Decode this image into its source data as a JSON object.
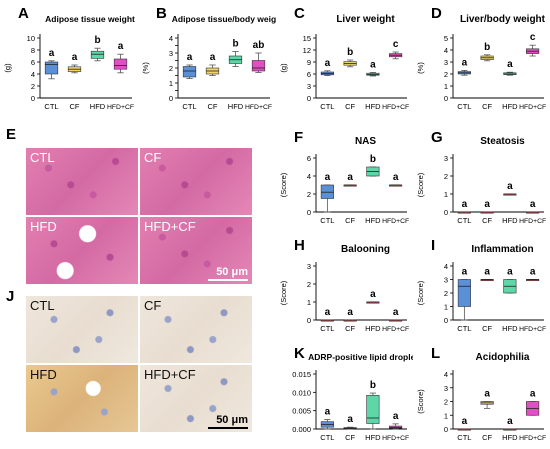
{
  "histology": {
    "he_label": "E",
    "ihc_label": "J",
    "he_panels": [
      "CTL",
      "CF",
      "HFD",
      "HFD+CF"
    ],
    "ihc_panels": [
      "CTL",
      "CF",
      "HFD",
      "HFD+CF"
    ],
    "scale_text": "50 μm"
  },
  "chart_data": [
    {
      "id": "A",
      "type": "box",
      "title": "Adipose tissue weight",
      "ylabel": "(g)",
      "ylim": [
        0,
        10
      ],
      "yticks": [
        0,
        2,
        4,
        6,
        8,
        10
      ],
      "categories": [
        "CTL",
        "CF",
        "HFD",
        "HFD+CF"
      ],
      "colors": [
        "#5b8fd6",
        "#f2d26a",
        "#5fd6a8",
        "#e24fc5"
      ],
      "boxes": [
        {
          "min": 3.2,
          "q1": 4.0,
          "median": 5.6,
          "q3": 6.0,
          "max": 6.2
        },
        {
          "min": 4.2,
          "q1": 4.4,
          "median": 4.8,
          "q3": 5.2,
          "max": 5.5
        },
        {
          "min": 6.2,
          "q1": 6.6,
          "median": 7.3,
          "q3": 7.8,
          "max": 8.3
        },
        {
          "min": 4.2,
          "q1": 4.8,
          "median": 5.4,
          "q3": 6.5,
          "max": 7.3
        }
      ],
      "letters": [
        "a",
        "a",
        "b",
        "a"
      ]
    },
    {
      "id": "B",
      "type": "box",
      "title": "Adipose tissue/body weight",
      "ylabel": "(%)",
      "ylim": [
        0,
        4
      ],
      "yticks": [
        0,
        0.5,
        1,
        1.5,
        2,
        2.5,
        3,
        3.5,
        4
      ],
      "categories": [
        "CTL",
        "CF",
        "HFD",
        "HFD+CF"
      ],
      "colors": [
        "#5b8fd6",
        "#f2d26a",
        "#5fd6a8",
        "#e24fc5"
      ],
      "boxes": [
        {
          "min": 1.3,
          "q1": 1.4,
          "median": 1.8,
          "q3": 2.1,
          "max": 2.2
        },
        {
          "min": 1.5,
          "q1": 1.6,
          "median": 1.8,
          "q3": 2.0,
          "max": 2.2
        },
        {
          "min": 2.1,
          "q1": 2.3,
          "median": 2.55,
          "q3": 2.8,
          "max": 3.1
        },
        {
          "min": 1.7,
          "q1": 1.8,
          "median": 2.0,
          "q3": 2.5,
          "max": 3.0
        }
      ],
      "letters": [
        "a",
        "a",
        "b",
        "ab"
      ]
    },
    {
      "id": "C",
      "type": "box",
      "title": "Liver weight",
      "ylabel": "(g)",
      "ylim": [
        0,
        15
      ],
      "yticks": [
        0,
        3,
        6,
        9,
        12,
        15
      ],
      "categories": [
        "CTL",
        "CF",
        "HFD",
        "HFD+CF"
      ],
      "colors": [
        "#5b8fd6",
        "#f2d26a",
        "#5fd6a8",
        "#e24fc5"
      ],
      "boxes": [
        {
          "min": 5.6,
          "q1": 5.8,
          "median": 6.1,
          "q3": 6.5,
          "max": 6.8
        },
        {
          "min": 7.8,
          "q1": 8.2,
          "median": 8.6,
          "q3": 9.1,
          "max": 9.5
        },
        {
          "min": 5.5,
          "q1": 5.7,
          "median": 5.9,
          "q3": 6.2,
          "max": 6.4
        },
        {
          "min": 9.8,
          "q1": 10.3,
          "median": 10.7,
          "q3": 11.1,
          "max": 11.5
        }
      ],
      "letters": [
        "a",
        "b",
        "a",
        "c"
      ]
    },
    {
      "id": "D",
      "type": "box",
      "title": "Liver/body weight",
      "ylabel": "(%)",
      "ylim": [
        0,
        5
      ],
      "yticks": [
        0,
        1,
        2,
        3,
        4,
        5
      ],
      "categories": [
        "CTL",
        "CF",
        "HFD",
        "HFD+CF"
      ],
      "colors": [
        "#5b8fd6",
        "#f2d26a",
        "#5fd6a8",
        "#e24fc5"
      ],
      "boxes": [
        {
          "min": 1.9,
          "q1": 2.0,
          "median": 2.1,
          "q3": 2.2,
          "max": 2.3
        },
        {
          "min": 3.1,
          "q1": 3.2,
          "median": 3.35,
          "q3": 3.5,
          "max": 3.6
        },
        {
          "min": 1.9,
          "q1": 1.95,
          "median": 2.0,
          "q3": 2.1,
          "max": 2.15
        },
        {
          "min": 3.5,
          "q1": 3.7,
          "median": 3.9,
          "q3": 4.1,
          "max": 4.4
        }
      ],
      "letters": [
        "a",
        "b",
        "a",
        "c"
      ]
    },
    {
      "id": "F",
      "type": "box",
      "title": "NAS",
      "ylabel": "(Score)",
      "ylim": [
        0,
        6
      ],
      "yticks": [
        0,
        2,
        4,
        6
      ],
      "categories": [
        "CTL",
        "CF",
        "HFD",
        "HFD+CF"
      ],
      "colors": [
        "#5b8fd6",
        "#e24f4f",
        "#5fd6a8",
        "#e24f4f"
      ],
      "boxes": [
        {
          "min": 0,
          "q1": 1.5,
          "median": 2.2,
          "q3": 3.0,
          "max": 3.0
        },
        {
          "min": 3.0,
          "q1": 3.0,
          "median": 3.0,
          "q3": 3.0,
          "max": 3.0
        },
        {
          "min": 4.0,
          "q1": 4.0,
          "median": 4.5,
          "q3": 5.0,
          "max": 5.0
        },
        {
          "min": 3.0,
          "q1": 3.0,
          "median": 3.0,
          "q3": 3.0,
          "max": 3.0
        }
      ],
      "letters": [
        "a",
        "a",
        "b",
        "a"
      ]
    },
    {
      "id": "G",
      "type": "box",
      "title": "Steatosis",
      "ylabel": "(Score)",
      "ylim": [
        0,
        3
      ],
      "yticks": [
        0,
        1,
        2,
        3
      ],
      "categories": [
        "CTL",
        "CF",
        "HFD",
        "HFD+CF"
      ],
      "colors": [
        "#e24f4f",
        "#e24f4f",
        "#e24f4f",
        "#e24f4f"
      ],
      "boxes": [
        {
          "min": 0,
          "q1": 0,
          "median": 0,
          "q3": 0,
          "max": 0
        },
        {
          "min": 0,
          "q1": 0,
          "median": 0,
          "q3": 0,
          "max": 0
        },
        {
          "min": 1,
          "q1": 1,
          "median": 1,
          "q3": 1,
          "max": 1
        },
        {
          "min": 0,
          "q1": 0,
          "median": 0,
          "q3": 0,
          "max": 0
        }
      ],
      "letters": [
        "a",
        "a",
        "a",
        "a"
      ]
    },
    {
      "id": "H",
      "type": "box",
      "title": "Balooning",
      "ylabel": "(Score)",
      "ylim": [
        0,
        3
      ],
      "yticks": [
        0,
        1,
        2,
        3
      ],
      "categories": [
        "CTL",
        "CF",
        "HFD",
        "HFD+CF"
      ],
      "colors": [
        "#e24f4f",
        "#e24f4f",
        "#e24f4f",
        "#e24f4f"
      ],
      "boxes": [
        {
          "min": 0,
          "q1": 0,
          "median": 0,
          "q3": 0,
          "max": 0
        },
        {
          "min": 0,
          "q1": 0,
          "median": 0,
          "q3": 0,
          "max": 0
        },
        {
          "min": 1,
          "q1": 1,
          "median": 1,
          "q3": 1,
          "max": 1
        },
        {
          "min": 0,
          "q1": 0,
          "median": 0,
          "q3": 0,
          "max": 0
        }
      ],
      "letters": [
        "a",
        "a",
        "a",
        "a"
      ]
    },
    {
      "id": "I",
      "type": "box",
      "title": "Inflammation",
      "ylabel": "(Score)",
      "ylim": [
        0,
        4
      ],
      "yticks": [
        0,
        1,
        2,
        3,
        4
      ],
      "categories": [
        "CTL",
        "CF",
        "HFD",
        "HFD+CF"
      ],
      "colors": [
        "#5b8fd6",
        "#e24f4f",
        "#5fd6a8",
        "#e24f4f"
      ],
      "boxes": [
        {
          "min": 0,
          "q1": 1.0,
          "median": 2.5,
          "q3": 3.0,
          "max": 3.0
        },
        {
          "min": 3,
          "q1": 3,
          "median": 3,
          "q3": 3,
          "max": 3
        },
        {
          "min": 2.0,
          "q1": 2.0,
          "median": 2.5,
          "q3": 3.0,
          "max": 3.0
        },
        {
          "min": 3,
          "q1": 3,
          "median": 3,
          "q3": 3,
          "max": 3
        }
      ],
      "letters": [
        "a",
        "a",
        "a",
        "a"
      ]
    },
    {
      "id": "K",
      "type": "box",
      "title": "ADRP-positive lipid droplets",
      "ylabel": "",
      "ylim": [
        0,
        0.015
      ],
      "yticks": [
        0,
        0.005,
        0.01,
        0.015
      ],
      "ytick_labels": [
        "0.000",
        "0.005",
        "0.010",
        "0.015"
      ],
      "categories": [
        "CTL",
        "CF",
        "HFD",
        "HFD+CF"
      ],
      "colors": [
        "#5b8fd6",
        "#e24fc5",
        "#5fd6a8",
        "#e24fc5"
      ],
      "boxes": [
        {
          "min": 0.0,
          "q1": 0.0005,
          "median": 0.0012,
          "q3": 0.002,
          "max": 0.0026
        },
        {
          "min": 0.0,
          "q1": 0.0001,
          "median": 0.0002,
          "q3": 0.0004,
          "max": 0.0005
        },
        {
          "min": 0.0,
          "q1": 0.0015,
          "median": 0.003,
          "q3": 0.0092,
          "max": 0.0098
        },
        {
          "min": 0.0,
          "q1": 0.0002,
          "median": 0.0004,
          "q3": 0.0008,
          "max": 0.0014
        }
      ],
      "letters": [
        "a",
        "a",
        "b",
        "a"
      ]
    },
    {
      "id": "L",
      "type": "box",
      "title": "Acidophilia",
      "ylabel": "(Score)",
      "ylim": [
        0,
        4
      ],
      "yticks": [
        0,
        1,
        2,
        3,
        4
      ],
      "categories": [
        "CTL",
        "CF",
        "HFD",
        "HFD+CF"
      ],
      "colors": [
        "#e24f4f",
        "#f2d26a",
        "#e24f4f",
        "#e24fc5"
      ],
      "boxes": [
        {
          "min": 0,
          "q1": 0,
          "median": 0,
          "q3": 0,
          "max": 0
        },
        {
          "min": 1.5,
          "q1": 1.8,
          "median": 1.9,
          "q3": 2.0,
          "max": 2.0
        },
        {
          "min": 0,
          "q1": 0,
          "median": 0,
          "q3": 0,
          "max": 0
        },
        {
          "min": 1.0,
          "q1": 1.0,
          "median": 1.5,
          "q3": 2.0,
          "max": 2.0
        }
      ],
      "letters": [
        "a",
        "a",
        "a",
        "a"
      ]
    }
  ]
}
